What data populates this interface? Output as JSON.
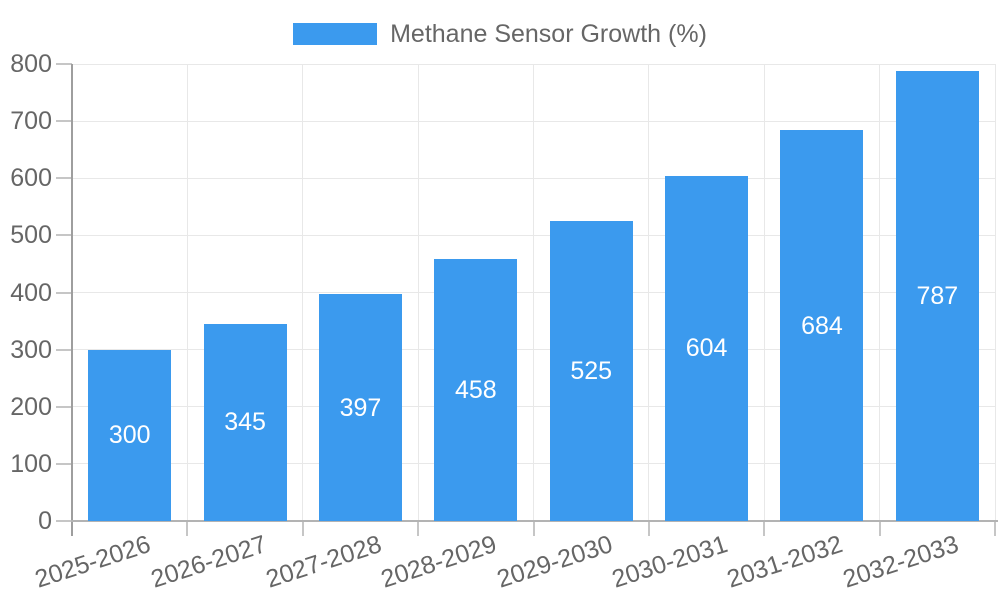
{
  "chart": {
    "legend": {
      "label": "Methane Sensor Growth (%)"
    }
  },
  "chart_data": {
    "type": "bar",
    "title": "",
    "legend_position": "top",
    "series_name": "Methane Sensor Growth (%)",
    "categories": [
      "2025-2026",
      "2026-2027",
      "2027-2028",
      "2028-2029",
      "2029-2030",
      "2030-2031",
      "2031-2032",
      "2032-2033"
    ],
    "values": [
      300,
      345,
      397,
      458,
      525,
      604,
      684,
      787
    ],
    "value_labels": [
      "300",
      "345",
      "397",
      "458",
      "525",
      "604",
      "684",
      "787"
    ],
    "xlabel": "",
    "ylabel": "",
    "ylim": [
      0,
      800
    ],
    "ytick_step": 100,
    "ytick_labels": [
      "0",
      "100",
      "200",
      "300",
      "400",
      "500",
      "600",
      "700",
      "800"
    ],
    "grid": true,
    "x_label_rotation_deg": -18,
    "colors": {
      "bar": "#3b9aee",
      "value_label": "#ffffff",
      "axis_text": "#666666",
      "grid_line": "#e8e8e8",
      "y_axis_line": "#9e9e9e",
      "x_axis_line": "#b3b3b3",
      "tick_mark": "#c6c6c6"
    }
  }
}
